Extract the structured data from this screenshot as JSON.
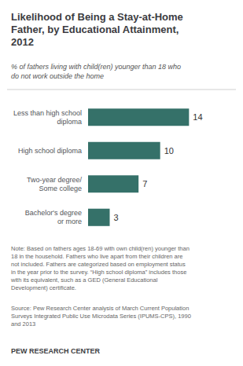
{
  "chart_data": {
    "type": "bar",
    "orientation": "horizontal",
    "title": "Likelihood of Being a Stay-at-Home\nFather, by Educational Attainment,\n2012",
    "subtitle": "% of fathers living with child(ren) younger than 18 who\ndo not work outside the home",
    "categories": [
      "Less than high school\ndiploma",
      "High school diploma",
      "Two-year degree/\nSome college",
      "Bachelor's degree\nor more"
    ],
    "values": [
      14,
      10,
      7,
      3
    ],
    "color": "#357169",
    "xlim": [
      0,
      18
    ],
    "data_labels": true,
    "tick_labels": "y",
    "grid": false,
    "annotations": [
      "Note: Based on fathers ages 18-69 with own child(ren) younger than\n18 in the household. Fathers who live apart from their children are\nnot included. Fathers are categorized based on employment status\nin the year prior to the survey. “High school diploma” includes those\nwith its equivalent, such as a GED (General Educational\nDevelopment) certificate.",
      "Source: Pew Research Center analysis of March Current Population\nSurveys Integrated Public Use Microdata Series (IPUMS-CPS), 1990\nand 2013",
      "PEW RESEARCH CENTER"
    ]
  }
}
